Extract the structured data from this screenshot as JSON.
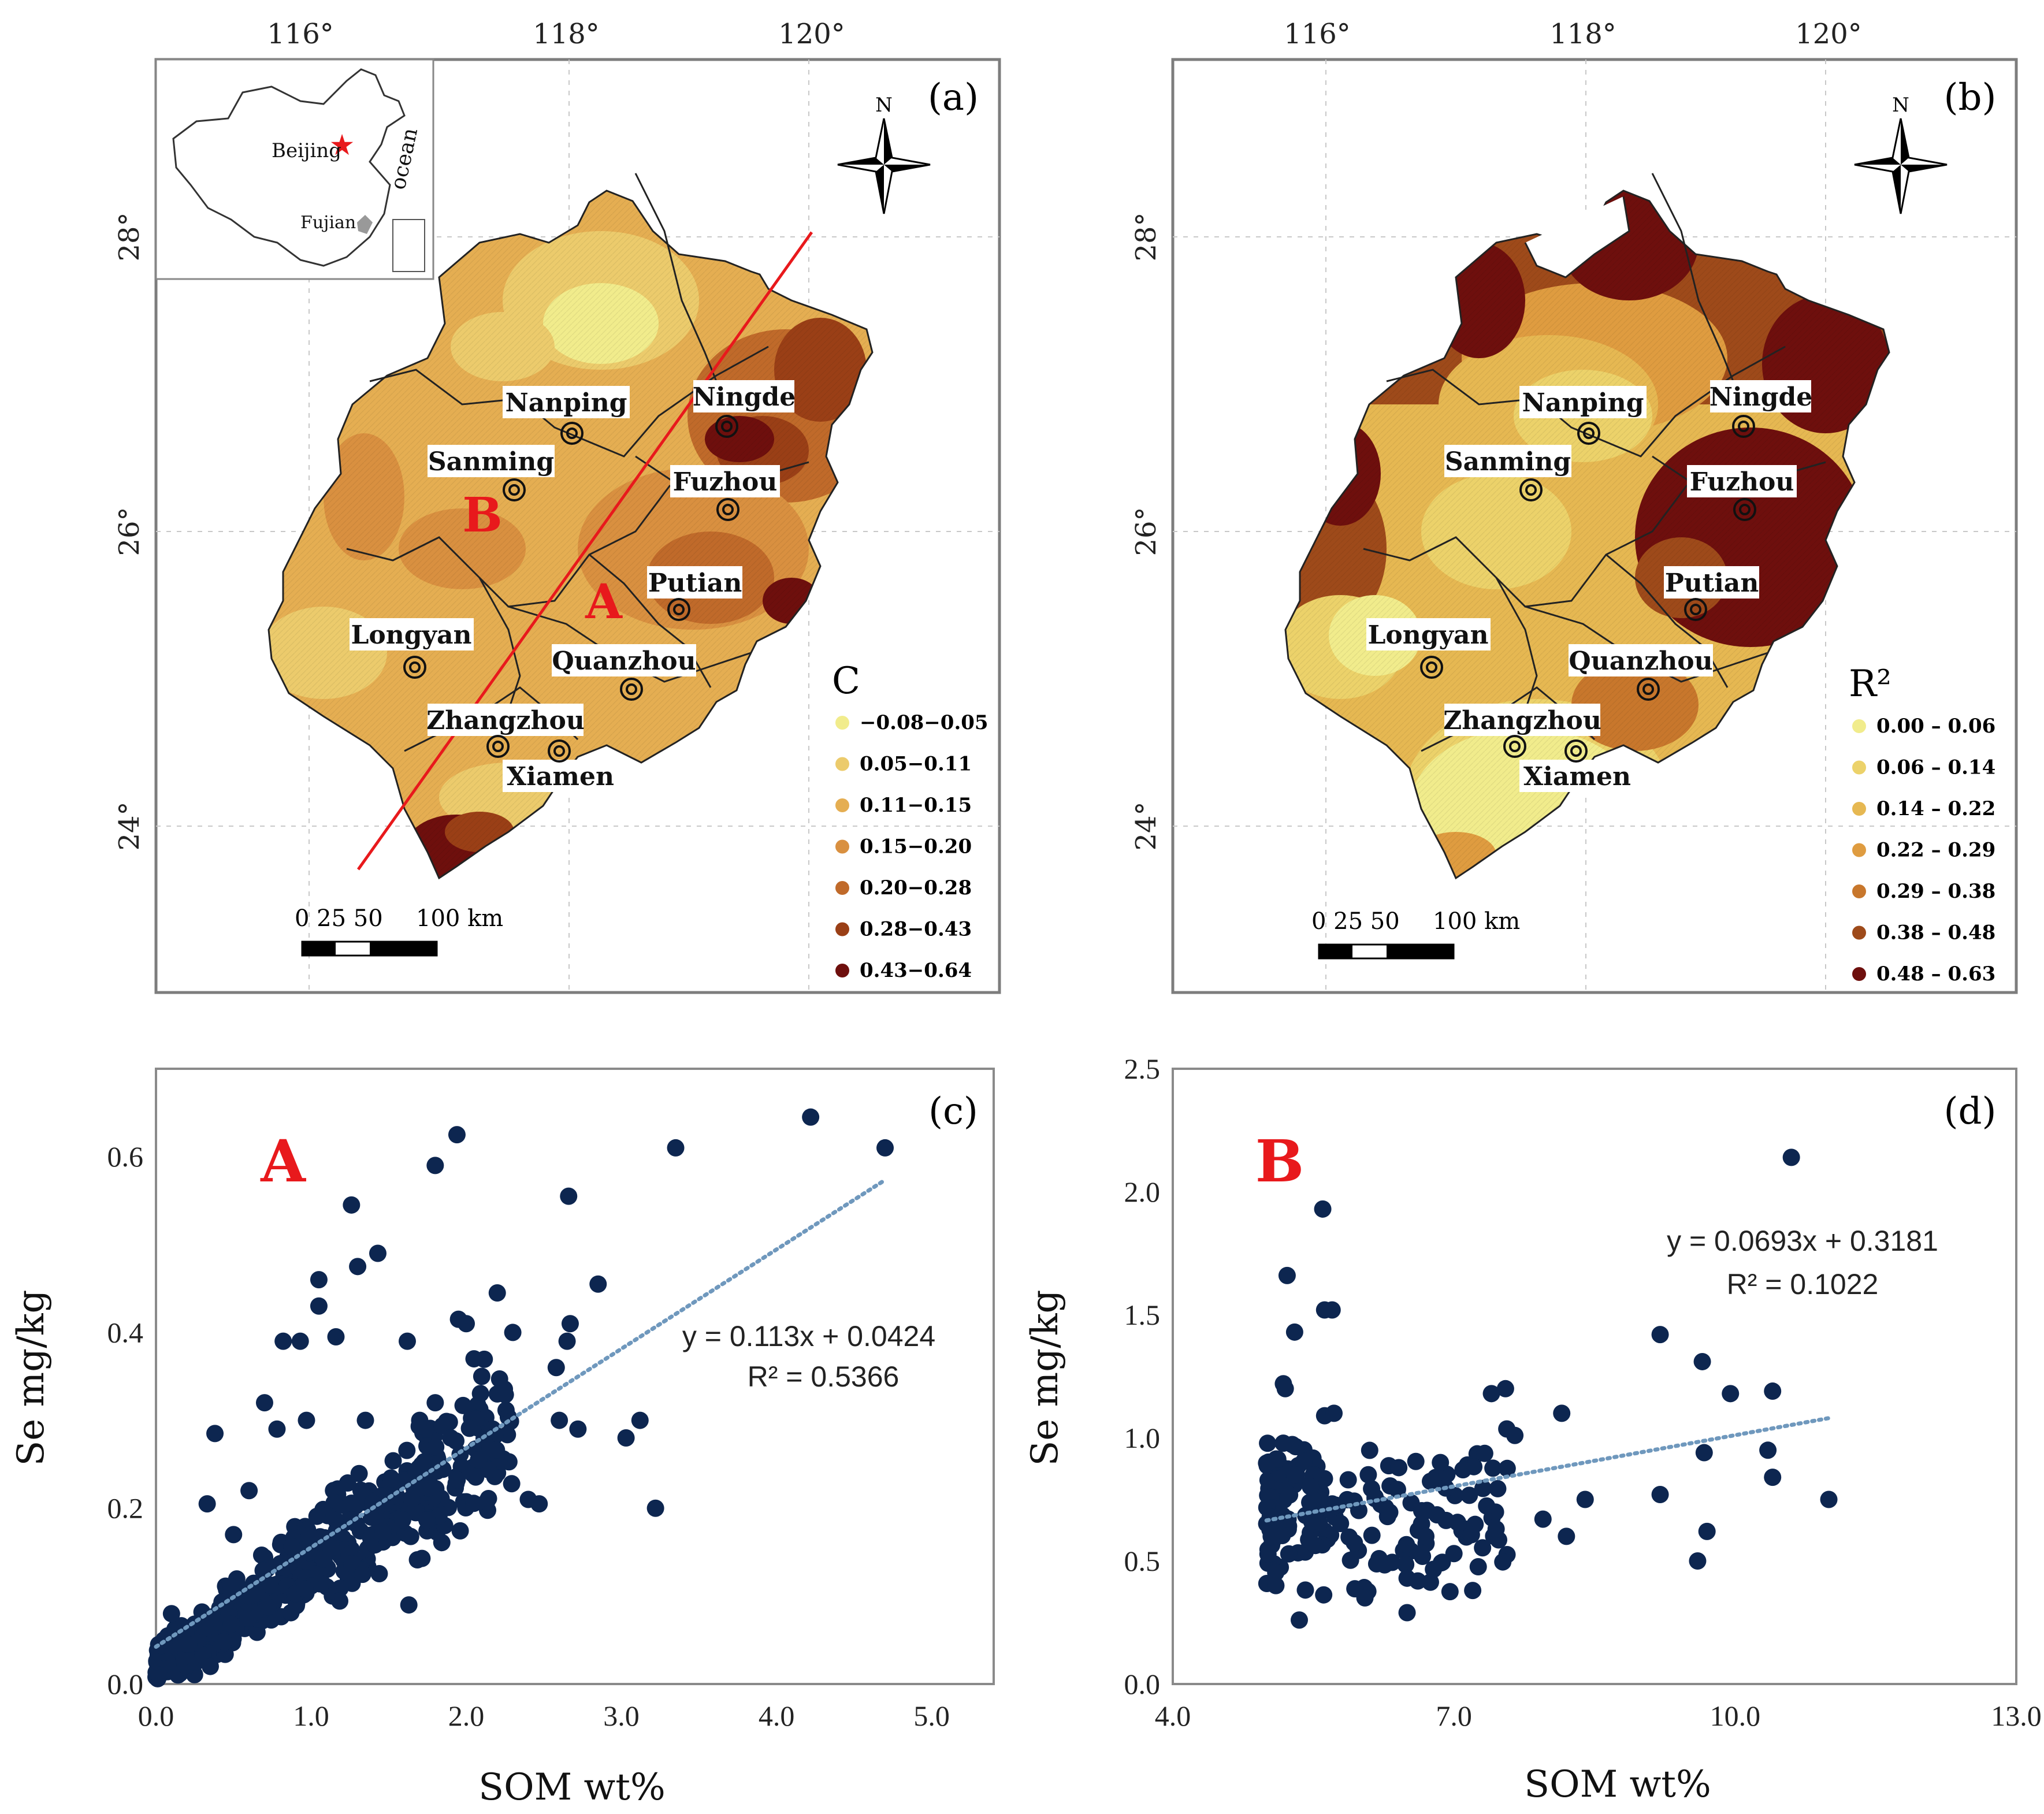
{
  "colors": {
    "c_class": [
      "#f1ec8c",
      "#eccb6c",
      "#e5ae52",
      "#d99040",
      "#c06a2a",
      "#9a3f16",
      "#6e0f0d"
    ],
    "r2_class": [
      "#f1ec8c",
      "#ecd26a",
      "#e6b852",
      "#df9c40",
      "#c8772c",
      "#9e4a1a",
      "#6e0f0d"
    ],
    "point": "#0d2650",
    "trend": "#6f98bd",
    "red": "#e8191c"
  },
  "map_a": {
    "panel_label": "(a)",
    "lon_labels": [
      "116°",
      "118°",
      "120°"
    ],
    "lat_labels": [
      "28°",
      "26°",
      "24°"
    ],
    "north": "N",
    "zone_a": "A",
    "zone_b": "B",
    "cities": [
      "Nanping",
      "Ningde",
      "Sanming",
      "Fuzhou",
      "Putian",
      "Longyan",
      "Quanzhou",
      "Zhangzhou",
      "Xiamen"
    ],
    "inset": {
      "beijing": "Beijing",
      "fujian": "Fujian",
      "ocean": "ocean"
    },
    "scale": {
      "ticks": "0  25 50",
      "end": "100 km"
    },
    "legend_title": "C",
    "legend": [
      "−0.08−0.05",
      "0.05−0.11",
      "0.11−0.15",
      "0.15−0.20",
      "0.20−0.28",
      "0.28−0.43",
      "0.43−0.64"
    ]
  },
  "map_b": {
    "panel_label": "(b)",
    "lon_labels": [
      "116°",
      "118°",
      "120°"
    ],
    "lat_labels": [
      "28°",
      "26°",
      "24°"
    ],
    "north": "N",
    "cities": [
      "Nanping",
      "Ningde",
      "Sanming",
      "Fuzhou",
      "Putian",
      "Longyan",
      "Quanzhou",
      "Zhangzhou",
      "Xiamen"
    ],
    "scale": {
      "ticks": "0  25 50",
      "end": "100 km"
    },
    "legend_title": "R²",
    "legend": [
      "0.00 – 0.06",
      "0.06 – 0.14",
      "0.14 – 0.22",
      "0.22 – 0.29",
      "0.29 – 0.38",
      "0.38 – 0.48",
      "0.48 – 0.63"
    ]
  },
  "chart_data": [
    {
      "panel": "(c)",
      "type": "scatter",
      "zone": "A",
      "xlabel": "SOM wt%",
      "ylabel": "Se mg/kg",
      "xlim": [
        0,
        5.4
      ],
      "ylim": [
        0,
        0.7
      ],
      "xticks": [
        "0.0",
        "1.0",
        "2.0",
        "3.0",
        "4.0",
        "5.0"
      ],
      "yticks": [
        "0.0",
        "0.2",
        "0.4",
        "0.6"
      ],
      "equation": "y = 0.113x + 0.0424",
      "r2": "R² = 0.5366",
      "trend": {
        "slope": 0.113,
        "intercept": 0.0424,
        "x_range": [
          0,
          4.7
        ]
      },
      "points": [
        [
          1.94,
          0.625
        ],
        [
          4.22,
          0.645
        ],
        [
          4.7,
          0.61
        ],
        [
          3.35,
          0.61
        ],
        [
          1.8,
          0.59
        ],
        [
          1.26,
          0.545
        ],
        [
          2.66,
          0.555
        ],
        [
          1.05,
          0.46
        ],
        [
          1.43,
          0.49
        ],
        [
          1.3,
          0.475
        ],
        [
          2.85,
          0.455
        ],
        [
          2.2,
          0.445
        ],
        [
          1.95,
          0.415
        ],
        [
          2.0,
          0.41
        ],
        [
          2.67,
          0.41
        ],
        [
          2.3,
          0.4
        ],
        [
          1.16,
          0.395
        ],
        [
          2.65,
          0.39
        ],
        [
          0.93,
          0.39
        ],
        [
          0.82,
          0.39
        ],
        [
          1.05,
          0.43
        ],
        [
          1.62,
          0.39
        ],
        [
          0.78,
          0.29
        ],
        [
          0.38,
          0.285
        ],
        [
          2.6,
          0.3
        ],
        [
          2.72,
          0.29
        ],
        [
          3.12,
          0.3
        ],
        [
          3.03,
          0.28
        ],
        [
          2.47,
          0.205
        ],
        [
          3.22,
          0.2
        ],
        [
          2.4,
          0.21
        ],
        [
          0.33,
          0.205
        ],
        [
          0.7,
          0.32
        ],
        [
          0.97,
          0.3
        ],
        [
          1.35,
          0.3
        ],
        [
          1.7,
          0.3
        ],
        [
          2.1,
          0.35
        ],
        [
          2.58,
          0.36
        ],
        [
          1.63,
          0.09
        ],
        [
          0.02,
          0.01
        ],
        [
          0.35,
          0.02
        ],
        [
          0.05,
          0.05
        ],
        [
          0.1,
          0.08
        ],
        [
          0.6,
          0.22
        ],
        [
          0.5,
          0.17
        ],
        [
          1.8,
          0.32
        ],
        [
          2.2,
          0.33
        ],
        [
          1.9,
          0.28
        ],
        [
          2.05,
          0.37
        ]
      ]
    },
    {
      "panel": "(d)",
      "type": "scatter",
      "zone": "B",
      "xlabel": "SOM wt%",
      "ylabel": "Se mg/kg",
      "xlim": [
        4,
        13
      ],
      "ylim": [
        0,
        2.5
      ],
      "xticks": [
        "4.0",
        "7.0",
        "10.0",
        "13.0"
      ],
      "yticks": [
        "0.0",
        "0.5",
        "1.0",
        "1.5",
        "2.0",
        "2.5"
      ],
      "equation": "y = 0.0693x + 0.3181",
      "r2": "R² = 0.1022",
      "trend": {
        "slope": 0.0693,
        "intercept": 0.3181,
        "x_range": [
          5,
          11
        ]
      },
      "points": [
        [
          5.6,
          1.93
        ],
        [
          10.6,
          2.14
        ],
        [
          5.22,
          1.66
        ],
        [
          5.62,
          1.52
        ],
        [
          5.7,
          1.52
        ],
        [
          5.3,
          1.43
        ],
        [
          9.2,
          1.42
        ],
        [
          5.18,
          1.22
        ],
        [
          5.2,
          1.2
        ],
        [
          9.65,
          1.31
        ],
        [
          7.55,
          1.2
        ],
        [
          7.4,
          1.18
        ],
        [
          10.4,
          1.19
        ],
        [
          9.95,
          1.18
        ],
        [
          8.15,
          1.1
        ],
        [
          5.62,
          1.09
        ],
        [
          5.72,
          1.1
        ],
        [
          7.65,
          1.01
        ],
        [
          9.67,
          0.94
        ],
        [
          10.35,
          0.95
        ],
        [
          10.4,
          0.84
        ],
        [
          11.0,
          0.75
        ],
        [
          9.2,
          0.77
        ],
        [
          8.4,
          0.75
        ],
        [
          7.95,
          0.67
        ],
        [
          8.2,
          0.6
        ],
        [
          9.7,
          0.62
        ],
        [
          9.6,
          0.5
        ],
        [
          6.5,
          0.43
        ],
        [
          7.2,
          0.38
        ],
        [
          7.0,
          0.53
        ],
        [
          5.35,
          0.26
        ],
        [
          6.5,
          0.29
        ],
        [
          6.7,
          0.6
        ],
        [
          7.45,
          0.63
        ],
        [
          6.05,
          0.35
        ],
        [
          5.1,
          0.4
        ],
        [
          5.05,
          0.6
        ],
        [
          5.3,
          0.85
        ]
      ]
    }
  ]
}
